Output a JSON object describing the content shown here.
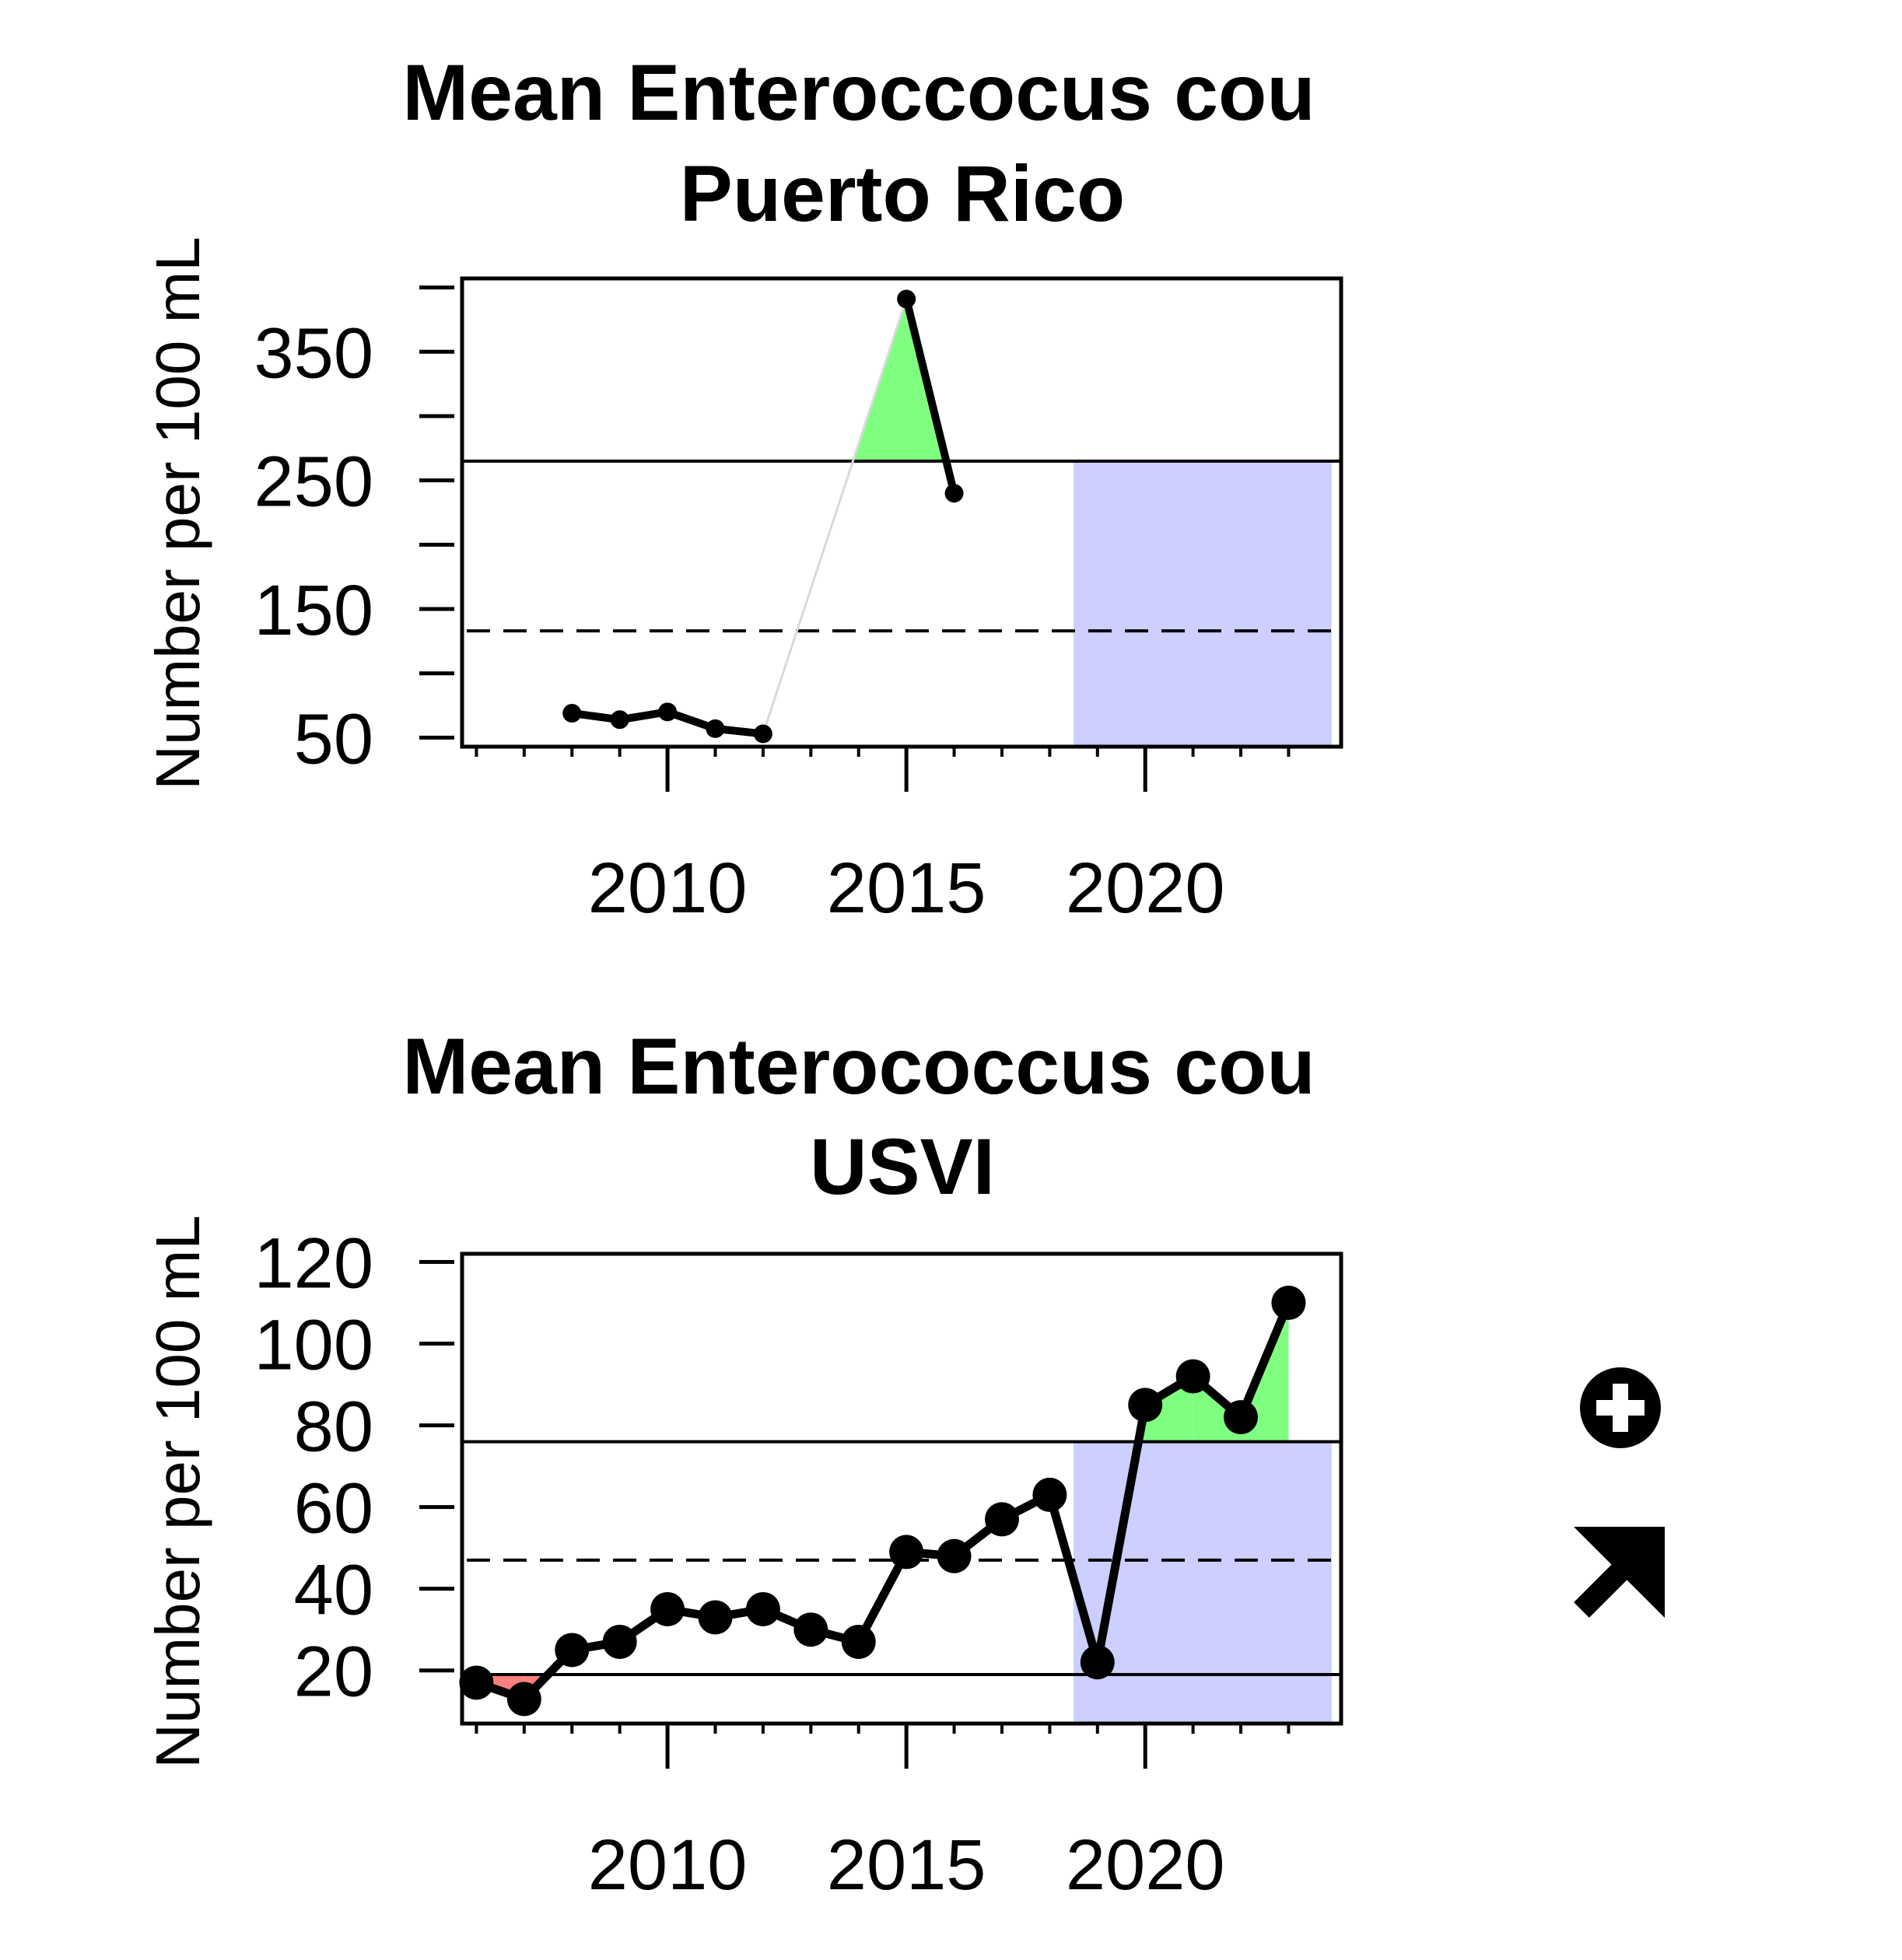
{
  "chart_data": [
    {
      "type": "line",
      "title": "Mean Enteroccocus cou",
      "subtitle": "Puerto Rico",
      "ylabel": "Number per 100 mL",
      "xlabel": "",
      "xlim": [
        2005.7,
        2024.1
      ],
      "ylim": [
        43,
        407
      ],
      "x_ticks": [
        2010,
        2015,
        2020
      ],
      "x_tick_labels": [
        "2010",
        "2015",
        "2020"
      ],
      "x_minor_ticks": [
        2006,
        2007,
        2008,
        2009,
        2011,
        2012,
        2013,
        2014,
        2016,
        2017,
        2018,
        2019,
        2021,
        2022,
        2023
      ],
      "y_ticks": [
        50,
        150,
        250,
        350
      ],
      "y_tick_labels": [
        "50",
        "150",
        "250",
        "350"
      ],
      "y_minor_ticks": [
        100,
        200,
        300,
        400
      ],
      "grid": false,
      "series": [
        {
          "x": [
            2008,
            2009,
            2010,
            2011,
            2012,
            2015,
            2016
          ],
          "y": [
            69,
            64,
            70,
            57,
            53,
            391,
            240
          ]
        }
      ],
      "gaps": [
        [
          2012,
          2015
        ]
      ],
      "mean_plus_sd": 265,
      "mean": 133,
      "mean_minus_sd": null,
      "highlight_years": [
        2018.5,
        2023.9
      ],
      "colors": {
        "above": "#7fff7f",
        "below": "#ff7f7f",
        "recent": "#cccfff",
        "line": "#000000",
        "gap_line": "#d9d9d9"
      }
    },
    {
      "type": "line",
      "title": "Mean Enterococcus cou",
      "subtitle": "USVI",
      "ylabel": "Number per 100 mL",
      "xlabel": "",
      "xlim": [
        2005.7,
        2024.1
      ],
      "ylim": [
        7,
        122
      ],
      "x_ticks": [
        2010,
        2015,
        2020
      ],
      "x_tick_labels": [
        "2010",
        "2015",
        "2020"
      ],
      "x_minor_ticks": [
        2006,
        2007,
        2008,
        2009,
        2011,
        2012,
        2013,
        2014,
        2016,
        2017,
        2018,
        2019,
        2021,
        2022,
        2023
      ],
      "y_ticks": [
        20,
        40,
        60,
        80,
        100,
        120
      ],
      "y_tick_labels": [
        "20",
        "40",
        "60",
        "80",
        "100",
        "120"
      ],
      "y_minor_ticks": [],
      "grid": false,
      "series": [
        {
          "x": [
            2006,
            2007,
            2008,
            2009,
            2010,
            2011,
            2012,
            2013,
            2014,
            2015,
            2016,
            2017,
            2018,
            2019,
            2020,
            2021,
            2022,
            2023
          ],
          "y": [
            17,
            13,
            25,
            27,
            35,
            33,
            35,
            30,
            27,
            49,
            48,
            57,
            63,
            22,
            85,
            92,
            82,
            110
          ]
        }
      ],
      "gaps": [],
      "mean_plus_sd": 76,
      "mean": 47,
      "mean_minus_sd": 19,
      "highlight_years": [
        2018.5,
        2023.9
      ],
      "colors": {
        "above": "#7fff7f",
        "below": "#ff7f7f",
        "recent": "#cccfff",
        "line": "#000000",
        "gap_line": "#d9d9d9"
      }
    }
  ],
  "indicators": {
    "mean_icon": "circle-plus-icon",
    "trend_icon": "arrow-up-right-icon"
  }
}
